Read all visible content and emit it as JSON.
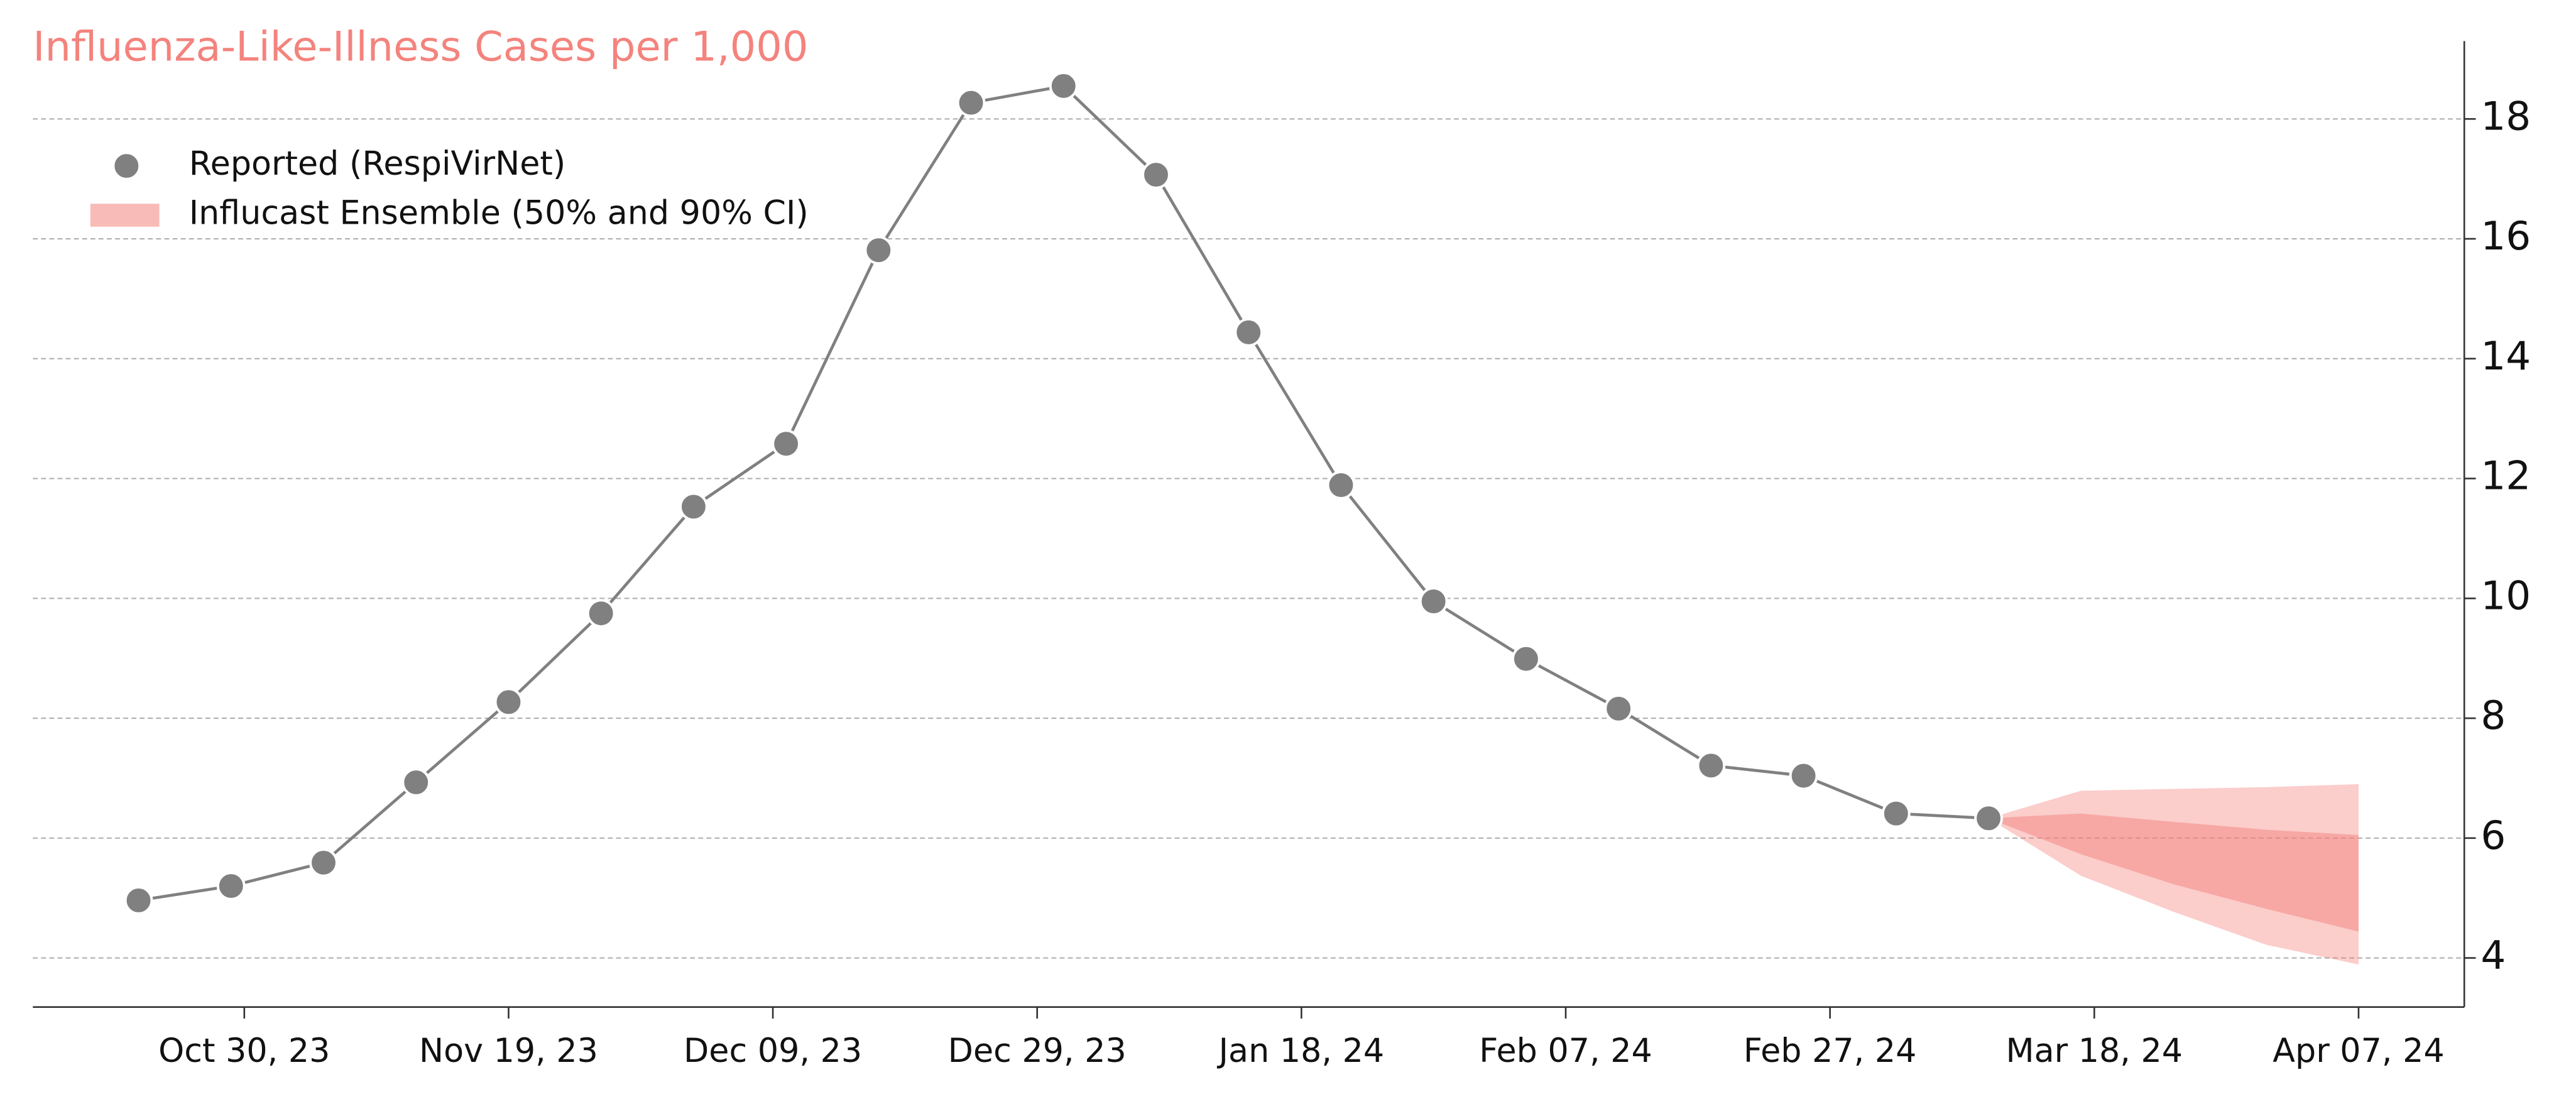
{
  "chart_data": {
    "type": "line",
    "title": "Influenza-Like-Illness Cases per 1,000",
    "x": [
      "2023-10-22",
      "2023-10-29",
      "2023-11-05",
      "2023-11-12",
      "2023-11-19",
      "2023-11-26",
      "2023-12-03",
      "2023-12-10",
      "2023-12-17",
      "2023-12-24",
      "2023-12-31",
      "2024-01-07",
      "2024-01-14",
      "2024-01-21",
      "2024-01-28",
      "2024-02-04",
      "2024-02-11",
      "2024-02-18",
      "2024-02-25",
      "2024-03-03",
      "2024-03-10"
    ],
    "series": [
      {
        "name": "Reported (RespiVirNet)",
        "color": "#808080",
        "values": [
          4.96,
          5.2,
          5.59,
          6.93,
          8.27,
          9.75,
          11.53,
          12.58,
          15.81,
          18.27,
          18.55,
          17.07,
          14.44,
          11.89,
          9.95,
          8.99,
          8.16,
          7.21,
          7.04,
          6.41,
          6.33
        ]
      }
    ],
    "forecast": {
      "name": "Influcast Ensemble (50% and 90% CI)",
      "color": "#f4837d",
      "x": [
        "2024-03-10",
        "2024-03-17",
        "2024-03-24",
        "2024-03-31",
        "2024-04-07"
      ],
      "upper_90": [
        6.33,
        6.79,
        6.82,
        6.85,
        6.9
      ],
      "lower_90": [
        6.33,
        5.37,
        4.77,
        4.22,
        3.89
      ],
      "upper_50": [
        6.33,
        6.41,
        6.27,
        6.14,
        6.05
      ],
      "lower_50": [
        6.33,
        5.73,
        5.23,
        4.82,
        4.44
      ]
    },
    "xlim": [
      "2023-10-14",
      "2024-04-15"
    ],
    "xticks": [
      {
        "value": "2023-10-30",
        "label": "Oct 30, 23"
      },
      {
        "value": "2023-11-19",
        "label": "Nov 19, 23"
      },
      {
        "value": "2023-12-09",
        "label": "Dec 09, 23"
      },
      {
        "value": "2023-12-29",
        "label": "Dec 29, 23"
      },
      {
        "value": "2024-01-18",
        "label": "Jan 18, 24"
      },
      {
        "value": "2024-02-07",
        "label": "Feb 07, 24"
      },
      {
        "value": "2024-02-27",
        "label": "Feb 27, 24"
      },
      {
        "value": "2024-03-18",
        "label": "Mar 18, 24"
      },
      {
        "value": "2024-04-07",
        "label": "Apr 07, 24"
      }
    ],
    "ylim": [
      3.18,
      19.3
    ],
    "yticks": [
      4,
      6,
      8,
      10,
      12,
      14,
      16,
      18
    ],
    "grid": true,
    "legend": "upper-left"
  }
}
